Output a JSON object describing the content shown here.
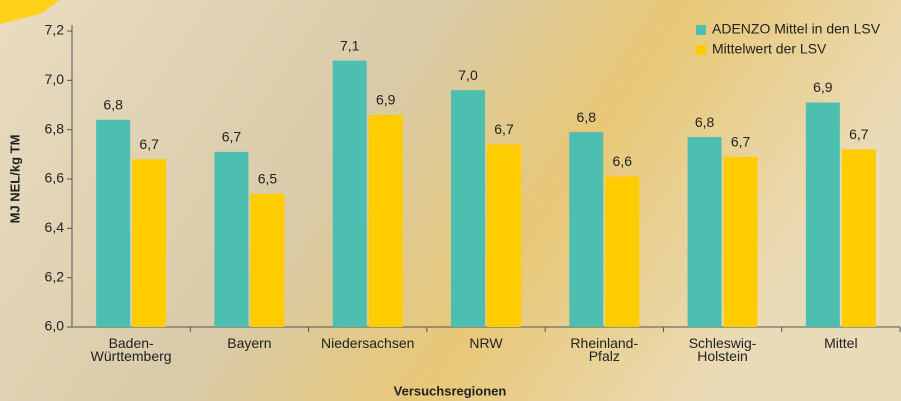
{
  "chart_data": {
    "type": "bar",
    "y_label": "MJ NEL/kg TM",
    "x_label": "Versuchsregionen",
    "categories": [
      "Baden-\nWürttemberg",
      "Bayern",
      "Niedersachsen",
      "NRW",
      "Rheinland-\nPfalz",
      "Schleswig-\nHolstein",
      "Mittel"
    ],
    "series": [
      {
        "name": "ADENZO Mittel in den LSV",
        "color": "#4dbfb0",
        "values": [
          6.84,
          6.71,
          7.08,
          6.96,
          6.79,
          6.77,
          6.91
        ],
        "value_labels": [
          "6,8",
          "6,7",
          "7,1",
          "7,0",
          "6,8",
          "6,8",
          "6,9"
        ]
      },
      {
        "name": "Mittelwert der LSV",
        "color": "#ffcc00",
        "values": [
          6.68,
          6.54,
          6.86,
          6.74,
          6.61,
          6.69,
          6.72
        ],
        "value_labels": [
          "6,7",
          "6,5",
          "6,9",
          "6,7",
          "6,6",
          "6,7",
          "6,7"
        ]
      }
    ],
    "ylim": [
      6.0,
      7.2
    ],
    "yticks": [
      {
        "value": 6.0,
        "label": "6,0"
      },
      {
        "value": 6.2,
        "label": "6,2"
      },
      {
        "value": 6.4,
        "label": "6,4"
      },
      {
        "value": 6.6,
        "label": "6,6"
      },
      {
        "value": 6.8,
        "label": "6,8"
      },
      {
        "value": 7.0,
        "label": "7,0"
      },
      {
        "value": 7.2,
        "label": "7,2"
      }
    ],
    "legend": "top-right"
  }
}
